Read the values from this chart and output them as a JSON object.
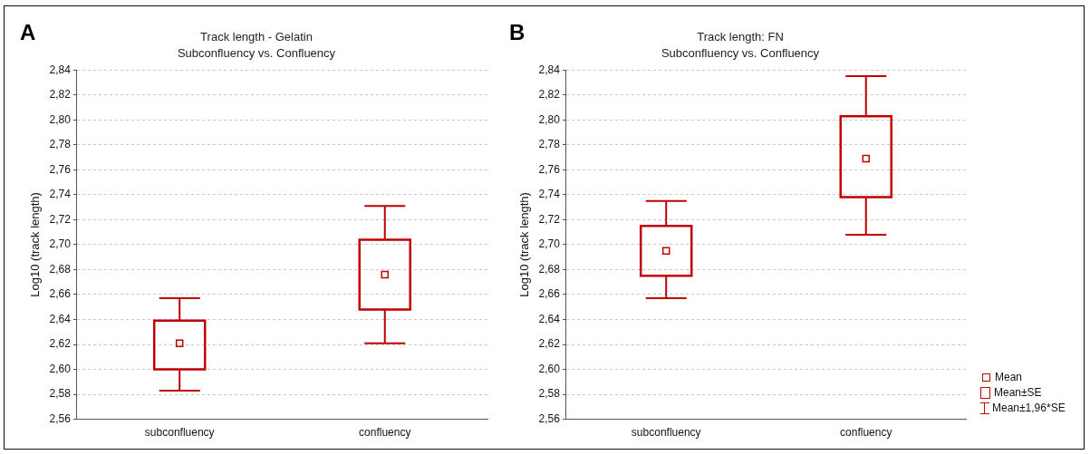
{
  "chart_data": [
    {
      "type": "box",
      "title": "Track length - Gelatin",
      "subtitle": "Subconfluency vs. Confluency",
      "ylabel": "Log10 (track length)",
      "annotations": [
        "A"
      ],
      "categories": [
        "subconfluency",
        "confluency"
      ],
      "color": "#c00000",
      "grid": "y",
      "boxes": [
        {
          "low": 2.583,
          "q1": 2.6,
          "median": 2.621,
          "q3": 2.639,
          "high": 2.657
        },
        {
          "low": 2.621,
          "q1": 2.648,
          "median": 2.676,
          "q3": 2.704,
          "high": 2.731
        }
      ],
      "ylim": [
        2.56,
        2.84
      ],
      "yticks": [
        {
          "value": 2.56,
          "label": "2,56"
        },
        {
          "value": 2.58,
          "label": "2,58"
        },
        {
          "value": 2.6,
          "label": "2,60"
        },
        {
          "value": 2.62,
          "label": "2,62"
        },
        {
          "value": 2.64,
          "label": "2,64"
        },
        {
          "value": 2.66,
          "label": "2,66"
        },
        {
          "value": 2.68,
          "label": "2,68"
        },
        {
          "value": 2.7,
          "label": "2,70"
        },
        {
          "value": 2.72,
          "label": "2,72"
        },
        {
          "value": 2.74,
          "label": "2,74"
        },
        {
          "value": 2.76,
          "label": "2,76"
        },
        {
          "value": 2.78,
          "label": "2,78"
        },
        {
          "value": 2.8,
          "label": "2,80"
        },
        {
          "value": 2.82,
          "label": "2,82"
        },
        {
          "value": 2.84,
          "label": "2,84"
        }
      ]
    },
    {
      "type": "box",
      "title": "Track length: FN",
      "subtitle": "Subconfluency vs. Confluency",
      "ylabel": "Log10 (track length)",
      "annotations": [
        "B",
        "Mean",
        "Mean±SE",
        "Mean±1,96*SE"
      ],
      "categories": [
        "subconfluency",
        "confluency"
      ],
      "color": "#c00000",
      "grid": "y",
      "boxes": [
        {
          "low": 2.657,
          "q1": 2.675,
          "median": 2.695,
          "q3": 2.715,
          "high": 2.735
        },
        {
          "low": 2.708,
          "q1": 2.738,
          "median": 2.769,
          "q3": 2.803,
          "high": 2.835
        }
      ],
      "ylim": [
        2.56,
        2.84
      ],
      "yticks": [
        {
          "value": 2.56,
          "label": "2,56"
        },
        {
          "value": 2.58,
          "label": "2,58"
        },
        {
          "value": 2.6,
          "label": "2,60"
        },
        {
          "value": 2.62,
          "label": "2,62"
        },
        {
          "value": 2.64,
          "label": "2,64"
        },
        {
          "value": 2.66,
          "label": "2,66"
        },
        {
          "value": 2.68,
          "label": "2,68"
        },
        {
          "value": 2.7,
          "label": "2,70"
        },
        {
          "value": 2.72,
          "label": "2,72"
        },
        {
          "value": 2.74,
          "label": "2,74"
        },
        {
          "value": 2.76,
          "label": "2,76"
        },
        {
          "value": 2.78,
          "label": "2,78"
        },
        {
          "value": 2.8,
          "label": "2,80"
        },
        {
          "value": 2.82,
          "label": "2,82"
        },
        {
          "value": 2.84,
          "label": "2,84"
        }
      ]
    }
  ]
}
